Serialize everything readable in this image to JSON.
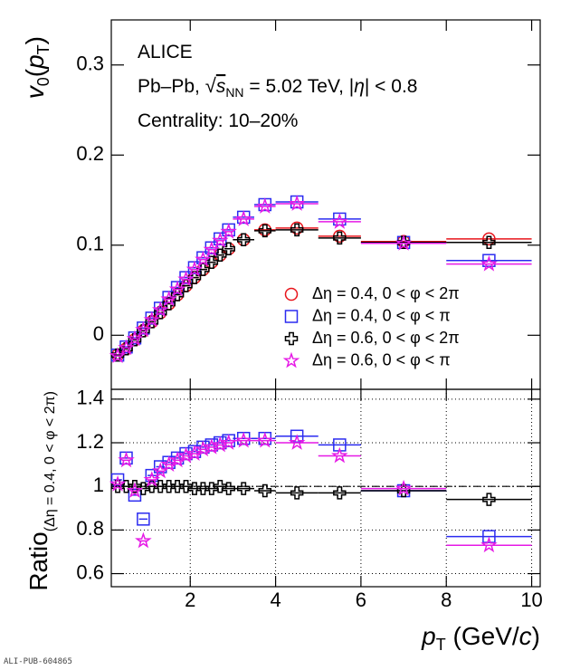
{
  "chart_data": [
    {
      "type": "scatter",
      "annotations": [
        "ALICE",
        "Centrality: 10–20%"
      ],
      "system_label": [
        "Pb–Pb, ",
        "s",
        "NN",
        " = 5.02 TeV, |",
        "η",
        "| < 0.8"
      ],
      "y_label": [
        "v",
        "0",
        "(",
        "p",
        "T",
        ")"
      ],
      "xlim": [
        0.15,
        10.2
      ],
      "ylim": [
        -0.06,
        0.35
      ],
      "yticks": [
        0,
        0.1,
        0.2,
        0.3
      ],
      "grid": false,
      "legend": "center-right",
      "x": [
        0.3,
        0.5,
        0.7,
        0.9,
        1.1,
        1.3,
        1.5,
        1.7,
        1.9,
        2.1,
        2.3,
        2.5,
        2.7,
        2.9,
        3.25,
        3.75,
        4.5,
        5.5,
        7,
        9
      ],
      "xerr": [
        0.1,
        0.1,
        0.1,
        0.1,
        0.1,
        0.1,
        0.1,
        0.1,
        0.1,
        0.1,
        0.1,
        0.1,
        0.1,
        0.1,
        0.25,
        0.25,
        0.5,
        0.5,
        1,
        1
      ],
      "series": [
        {
          "name": "Δη = 0.4, 0 < φ < 2π",
          "color": "#e8141b",
          "marker": "circle",
          "values": [
            -0.022,
            -0.015,
            -0.005,
            0.005,
            0.015,
            0.025,
            0.035,
            0.045,
            0.055,
            0.064,
            0.073,
            0.081,
            0.089,
            0.096,
            0.106,
            0.117,
            0.119,
            0.11,
            0.104,
            0.107
          ]
        },
        {
          "name": "Δη = 0.4, 0 < φ < π",
          "color": "#2b2bf0",
          "marker": "square",
          "values": [
            -0.022,
            -0.013,
            -0.003,
            0.008,
            0.019,
            0.03,
            0.042,
            0.053,
            0.064,
            0.075,
            0.086,
            0.097,
            0.107,
            0.117,
            0.131,
            0.145,
            0.148,
            0.129,
            0.103,
            0.083
          ]
        },
        {
          "name": "Δη = 0.6, 0 < φ < 2π",
          "color": "#000000",
          "marker": "cross",
          "values": [
            -0.022,
            -0.015,
            -0.005,
            0.005,
            0.015,
            0.025,
            0.035,
            0.045,
            0.055,
            0.064,
            0.073,
            0.081,
            0.089,
            0.096,
            0.106,
            0.116,
            0.117,
            0.108,
            0.103,
            0.103
          ]
        },
        {
          "name": "Δη = 0.6, 0 < φ < π",
          "color": "#e619e6",
          "marker": "star",
          "values": [
            -0.023,
            -0.014,
            -0.004,
            0.006,
            0.017,
            0.028,
            0.04,
            0.051,
            0.062,
            0.073,
            0.084,
            0.095,
            0.105,
            0.115,
            0.129,
            0.143,
            0.146,
            0.126,
            0.102,
            0.079
          ]
        }
      ]
    },
    {
      "type": "scatter",
      "y_label": [
        "Ratio",
        "(Δη = 0.4, 0 < φ < 2π)"
      ],
      "x_label": [
        "p",
        "T",
        " (GeV/",
        "c",
        ")"
      ],
      "xlim": [
        0.15,
        10.2
      ],
      "ylim": [
        0.54,
        1.445
      ],
      "xticks": [
        2,
        4,
        6,
        8,
        10
      ],
      "yticks": [
        {
          "value": 0.6,
          "label": "0.6"
        },
        {
          "value": 0.8,
          "label": "0.8"
        },
        1,
        {
          "value": 1.2,
          "label": "1.2"
        },
        {
          "value": 1.4,
          "label": "1.4"
        }
      ],
      "grid": true,
      "reference": 1,
      "x": [
        0.3,
        0.5,
        0.7,
        0.9,
        1.1,
        1.3,
        1.5,
        1.7,
        1.9,
        2.1,
        2.3,
        2.5,
        2.7,
        2.9,
        3.25,
        3.75,
        4.5,
        5.5,
        7,
        9
      ],
      "xerr": [
        0.1,
        0.1,
        0.1,
        0.1,
        0.1,
        0.1,
        0.1,
        0.1,
        0.1,
        0.1,
        0.1,
        0.1,
        0.1,
        0.1,
        0.25,
        0.25,
        0.5,
        0.5,
        1,
        1
      ],
      "series": [
        {
          "color": "#2b2bf0",
          "marker": "square",
          "values": [
            1.03,
            1.13,
            0.96,
            0.85,
            1.05,
            1.09,
            1.11,
            1.13,
            1.15,
            1.16,
            1.18,
            1.19,
            1.2,
            1.21,
            1.22,
            1.22,
            1.23,
            1.19,
            0.98,
            0.77
          ]
        },
        {
          "color": "#000000",
          "marker": "cross",
          "values": [
            1.0,
            1.0,
            1.0,
            0.99,
            1.0,
            1.0,
            1.0,
            1.0,
            1.0,
            0.99,
            0.99,
            0.99,
            1.0,
            0.99,
            0.99,
            0.98,
            0.97,
            0.97,
            0.98,
            0.94
          ]
        },
        {
          "color": "#e619e6",
          "marker": "star",
          "values": [
            1.01,
            1.12,
            0.98,
            0.75,
            1.03,
            1.07,
            1.1,
            1.12,
            1.14,
            1.15,
            1.17,
            1.18,
            1.19,
            1.2,
            1.21,
            1.21,
            1.2,
            1.14,
            0.99,
            0.73
          ]
        }
      ]
    }
  ],
  "footer": "ALI-PUB-604865"
}
